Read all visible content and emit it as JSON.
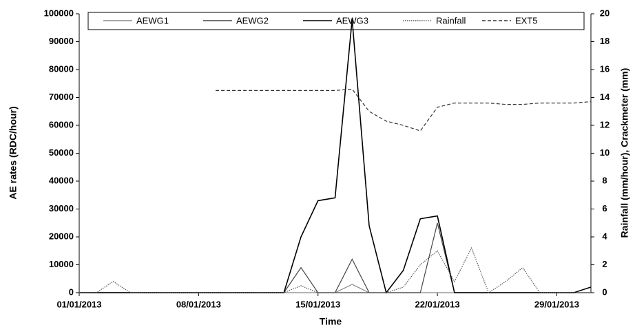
{
  "chart_data": {
    "type": "line",
    "x_label": "Time",
    "y_label": "AE rates (RDC/hour)",
    "y2_label": "Rainfall (mm/hour), Crackmeter (mm)",
    "x": [
      "01/01/2013",
      "02/01/2013",
      "03/01/2013",
      "04/01/2013",
      "05/01/2013",
      "06/01/2013",
      "07/01/2013",
      "08/01/2013",
      "09/01/2013",
      "10/01/2013",
      "11/01/2013",
      "12/01/2013",
      "13/01/2013",
      "14/01/2013",
      "15/01/2013",
      "16/01/2013",
      "17/01/2013",
      "18/01/2013",
      "19/01/2013",
      "20/01/2013",
      "21/01/2013",
      "22/01/2013",
      "23/01/2013",
      "24/01/2013",
      "25/01/2013",
      "26/01/2013",
      "27/01/2013",
      "28/01/2013",
      "29/01/2013",
      "30/01/2013",
      "31/01/2013"
    ],
    "xlim": [
      "01/01/2013",
      "31/01/2013"
    ],
    "xticks": [
      "01/01/2013",
      "08/01/2013",
      "15/01/2013",
      "22/01/2013",
      "29/01/2013"
    ],
    "ylim": [
      0,
      100000
    ],
    "yticks": [
      0,
      10000,
      20000,
      30000,
      40000,
      50000,
      60000,
      70000,
      80000,
      90000,
      100000
    ],
    "y2lim": [
      0,
      20
    ],
    "y2ticks": [
      0,
      2,
      4,
      6,
      8,
      10,
      12,
      14,
      16,
      18,
      20
    ],
    "series": [
      {
        "name": "AEWG1",
        "color": "#888888",
        "dash": "none",
        "values": [
          0,
          0,
          0,
          0,
          0,
          0,
          0,
          0,
          0,
          0,
          0,
          0,
          0,
          0,
          0,
          0,
          3000,
          0,
          0,
          0,
          0,
          0,
          0,
          0,
          0,
          0,
          0,
          0,
          0,
          0,
          0
        ]
      },
      {
        "name": "AEWG2",
        "color": "#444444",
        "dash": "none",
        "values": [
          0,
          0,
          0,
          0,
          0,
          0,
          0,
          0,
          0,
          0,
          0,
          0,
          0,
          9000,
          0,
          0,
          12000,
          0,
          0,
          0,
          0,
          25000,
          0,
          0,
          0,
          0,
          0,
          0,
          0,
          0,
          0
        ]
      },
      {
        "name": "AEWG3",
        "color": "#000000",
        "dash": "none",
        "values": [
          0,
          0,
          0,
          0,
          0,
          0,
          0,
          0,
          0,
          0,
          0,
          0,
          0,
          20000,
          33000,
          34000,
          98000,
          24000,
          0,
          8000,
          26500,
          27500,
          0,
          0,
          0,
          0,
          0,
          0,
          0,
          0,
          2000
        ]
      },
      {
        "name": "Rainfall",
        "color": "#555555",
        "dash": "1.5,1.5",
        "axis": "y2",
        "values": [
          0,
          0,
          0.8,
          0,
          0,
          0,
          0,
          0,
          0,
          0,
          0,
          0,
          0,
          0.5,
          0,
          0,
          0,
          0,
          0,
          0.4,
          2.0,
          3.0,
          0.8,
          3.2,
          0,
          0.8,
          1.8,
          0,
          0,
          0,
          0
        ]
      },
      {
        "name": "EXT5",
        "color": "#333333",
        "dash": "5,3",
        "axis": "y2",
        "values": [
          null,
          null,
          null,
          null,
          null,
          null,
          null,
          null,
          14.5,
          14.5,
          14.5,
          14.5,
          14.5,
          14.5,
          14.5,
          14.5,
          14.6,
          13,
          12.3,
          12,
          11.6,
          13.3,
          13.6,
          13.6,
          13.6,
          13.5,
          13.5,
          13.6,
          13.6,
          13.6,
          13.7
        ]
      }
    ]
  }
}
